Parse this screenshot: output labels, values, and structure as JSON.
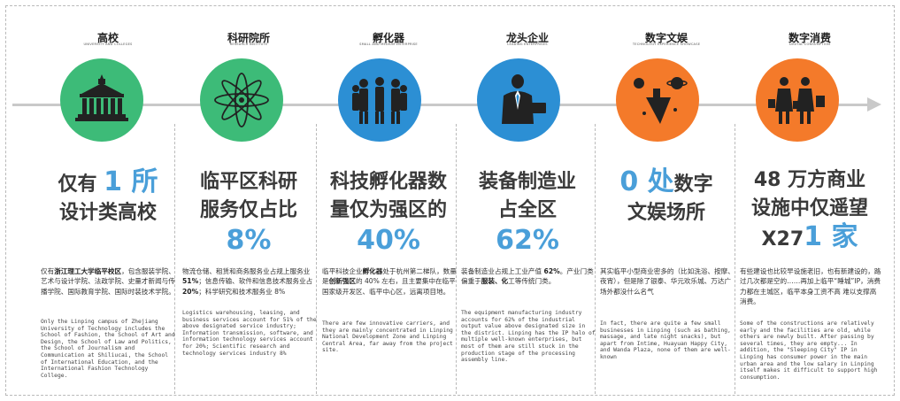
{
  "columns": [
    {
      "title": "高校",
      "subtitle": "University and Colleges",
      "icon": "university-building-icon",
      "color": "#3dbb78",
      "headline": {
        "line1_prefix": "仅有",
        "line1_accent": "1 所",
        "line2": "设计类高校"
      },
      "cn_desc": {
        "pre": "仅有",
        "bold": "浙江理工大学临平校区",
        "post": "，包含服装学院、艺术与设计学院、法政学院、史量才新闻与传播学院、国际教育学院、国际时装技术学院。"
      },
      "en_desc": "Only the Linping campus of Zhejiang University of Technology includes the School of Fashion, the School of Art and Design, the School of Law and Politics, the School of Journalism and Communication at Shiliucai, the School of International Education, and the International Fashion Technology College."
    },
    {
      "title": "科研院所",
      "subtitle": "Research Institute",
      "icon": "atom-icon",
      "color": "#3dbb78",
      "headline": {
        "line1": "临平区科研",
        "line2": "服务仅占比",
        "value": "8%"
      },
      "cn_desc": {
        "pre": "物流仓储、租赁和商务服务业占规上服务业 ",
        "bold1": "51%",
        "mid": "；信息传输、软件和信息技术服务业占 ",
        "bold2": "20%",
        "post": "；科学研究和技术服务业 8%"
      },
      "en_desc": "Logistics warehousing, leasing, and business services account for 51% of the above designated service industry; Information transmission, software, and information technology services account for 20%; Scientific research and technology services industry 8%"
    },
    {
      "title": "孵化器",
      "subtitle": "Small and Medium Enterprise",
      "icon": "team-people-icon",
      "color": "#2c8fd4",
      "headline": {
        "line1": "科技孵化器数",
        "line2": "量仅为强区的",
        "value": "40%"
      },
      "cn_desc": {
        "pre": "临平科技企业",
        "bold1": "孵化器",
        "mid": "处于杭州第二梯队，数量是",
        "bold2": "创新强区",
        "post": "的 40% 左右，且主要集中在临平国家级开发区、临平中心区，远离项目地。"
      },
      "en_desc": "There are few innovative carriers, and they are mainly concentrated in Linping National Development Zone and Linping Central Area, far away from the project site."
    },
    {
      "title": "龙头企业",
      "subtitle": "Leading Enterprises",
      "icon": "businessman-icon",
      "color": "#2c8fd4",
      "headline": {
        "line1": "装备制造业",
        "line2": "占全区",
        "value": "62%"
      },
      "cn_desc": {
        "pre": "装备制造业占规上工业产值 ",
        "bold1": "62%",
        "mid": "。产业门类偏重于",
        "bold2": "服装、化",
        "post": "工等传统门类。"
      },
      "en_desc": "The equipment manufacturing industry accounts for 62% of the industrial output value above designated size in the district. Linping has the IP halo of multiple well-known enterprises, but most of them are still stuck in the production stage of the processing assembly line."
    },
    {
      "title": "数字文娱",
      "subtitle": "Technology Experience Showcase",
      "icon": "planets-icon",
      "color": "#f47a2a",
      "headline": {
        "line1_accent": "0 处",
        "line1_suffix": "数字",
        "line2": "文娱场所"
      },
      "cn_desc": {
        "text": "其实临平小型商业密多的（比如洗浴、按摩、夜宵），但是除了银泰、华元欢乐城、万达广场外都没什么名气"
      },
      "en_desc": "In fact, there are quite a few small businesses in Linping (such as bathing, massage, and late night snacks), but apart from Intime, Huayuan Happy City, and Wanda Plaza, none of them are well-known"
    },
    {
      "title": "数字消费",
      "subtitle": "Digital Consumption",
      "icon": "shoppers-icon",
      "color": "#f47a2a",
      "headline": {
        "line1": "48 万方商业",
        "line2": "设施中仅遥望",
        "line3_prefix": "X27",
        "line3_accent": "1 家"
      },
      "cn_desc": {
        "text": "有些建设也比较早设施老旧，也有新建设的，路过几次都是空的……再加上临平“睡城”IP，消费力都在主城区，临平本身工资不高 难以支撑高消费。"
      },
      "en_desc": "Some of the constructions are relatively early and the facilities are old, while others are newly built. After passing by several times, they are empty... In addition, the \"Sleeping City\" IP in Linping has consumer power in the main urban area and the low salary in Linping itself makes it difficult to support high consumption."
    }
  ]
}
